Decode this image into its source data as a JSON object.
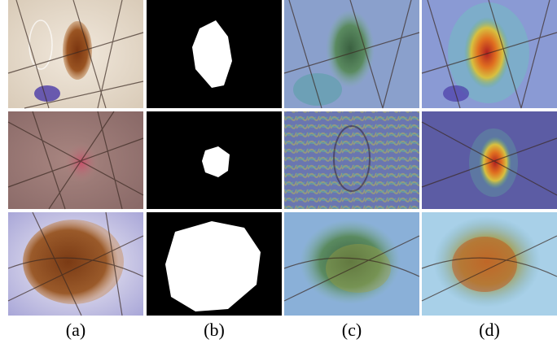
{
  "figure": {
    "labels": [
      "(a)",
      "(b)",
      "(c)",
      "(d)"
    ]
  }
}
